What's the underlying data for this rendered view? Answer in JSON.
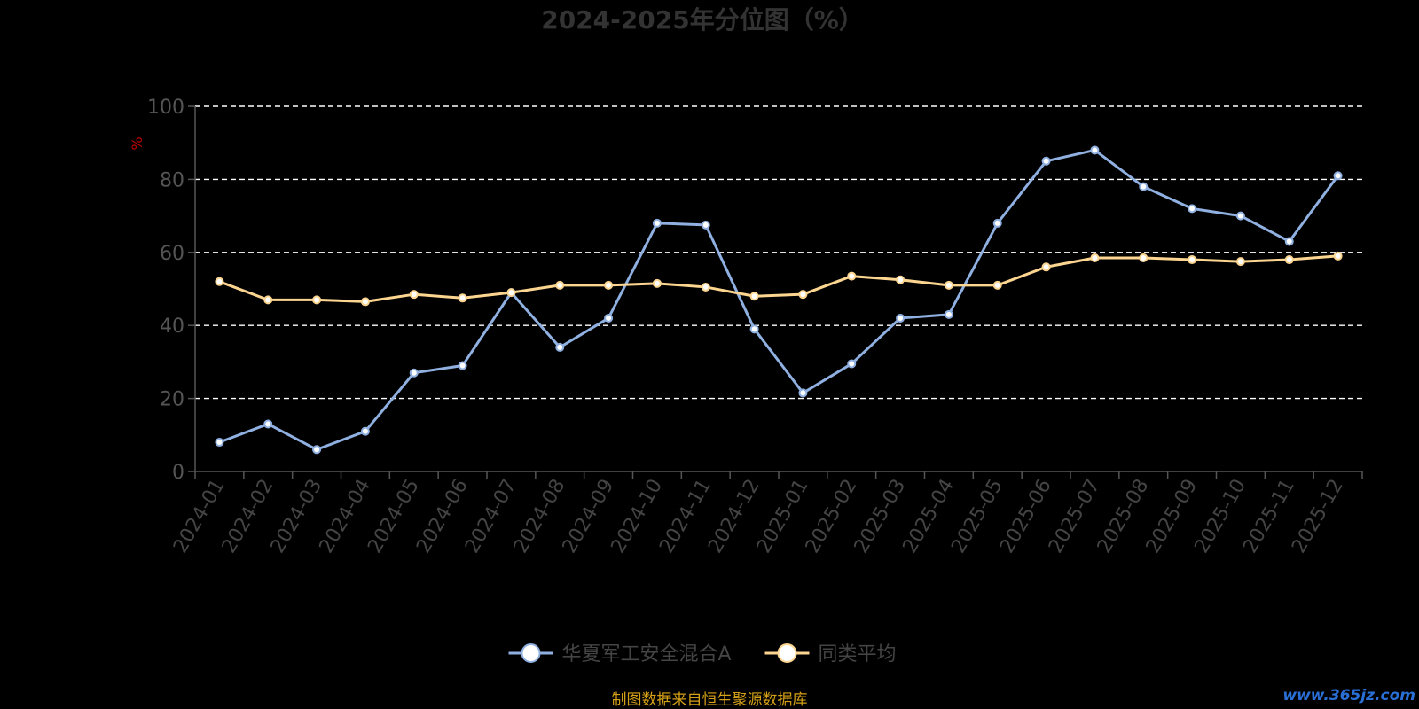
{
  "chart_data": {
    "type": "line",
    "title": "2024-2025年分位图（%）",
    "ylabel": "%",
    "ylim": [
      0,
      100
    ],
    "yticks": [
      "0",
      "20",
      "40",
      "60",
      "80",
      "100"
    ],
    "grid": true,
    "legend_position": "bottom",
    "categories": [
      "2024-01",
      "2024-02",
      "2024-03",
      "2024-04",
      "2024-05",
      "2024-06",
      "2024-07",
      "2024-08",
      "2024-09",
      "2024-10",
      "2024-11",
      "2024-12",
      "2025-01",
      "2025-02",
      "2025-03",
      "2025-04",
      "2025-05",
      "2025-06",
      "2025-07",
      "2025-08",
      "2025-09",
      "2025-10",
      "2025-11",
      "2025-12"
    ],
    "series": [
      {
        "name": "华夏军工安全混合A",
        "color": "#8fb0e0",
        "values": [
          8,
          13,
          6,
          11,
          27,
          29,
          49,
          34,
          42,
          68,
          67.5,
          39,
          21.5,
          29.5,
          42,
          43,
          68,
          85,
          88,
          78,
          72,
          70,
          63,
          81
        ]
      },
      {
        "name": "同类平均",
        "color": "#fcd590",
        "values": [
          52,
          47,
          47,
          46.5,
          48.5,
          47.5,
          49,
          51,
          51,
          51.5,
          50.5,
          48,
          48.5,
          53.5,
          52.5,
          51,
          51,
          56,
          58.5,
          58.5,
          58,
          57.5,
          58,
          59
        ]
      }
    ]
  },
  "footer": {
    "source": "制图数据来自恒生聚源数据库",
    "watermark": "www.365jz.com"
  }
}
